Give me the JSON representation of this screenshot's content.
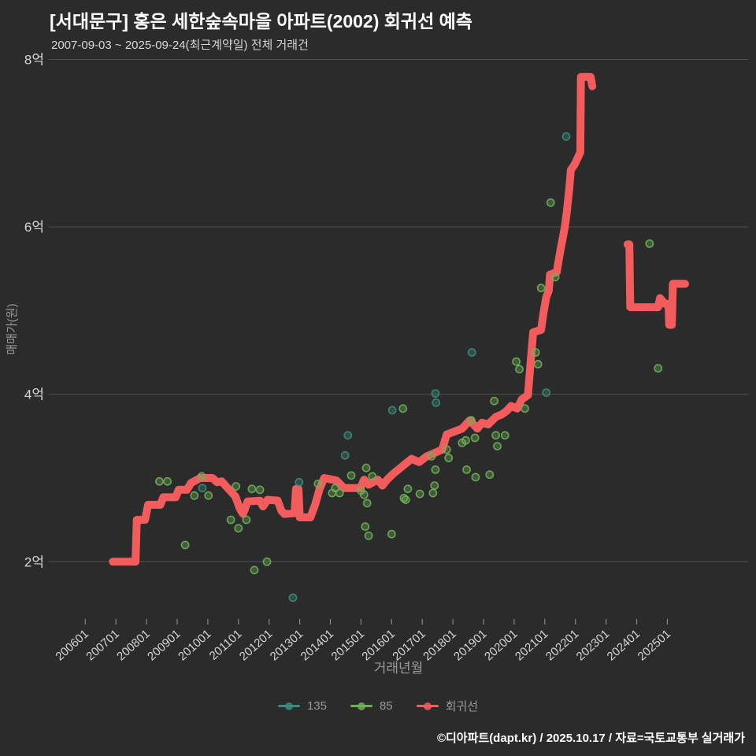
{
  "header": {
    "title": "[서대문구] 홍은 세한숲속마을 아파트(2002) 회귀선 예측",
    "subtitle": "2007-09-03 ~ 2025-09-24(최근계약일) 전체 거래건"
  },
  "footer": {
    "credit": "©디아파트(dapt.kr) / 2025.10.17 / 자료=국토교통부 실거래가"
  },
  "colors": {
    "background": "#2b2b2b",
    "grid": "#4f4f4f",
    "tick_mark": "#8a8a8a",
    "axis_tick_text": "#d5d5d5",
    "muted_text": "#9a9a9a",
    "title_text": "#ffffff",
    "red": "#f35c5c",
    "teal": "#3b8c7c",
    "green": "#6cb158"
  },
  "chart_data": {
    "type": "scatter",
    "title": "[서대문구] 홍은 세한숲속마을 아파트(2002) 회귀선 예측",
    "xlabel": "거래년월",
    "ylabel": "매매가(원)",
    "x_ticks": [
      "200601",
      "200701",
      "200801",
      "200901",
      "201001",
      "201101",
      "201201",
      "201301",
      "201401",
      "201501",
      "201601",
      "201701",
      "201801",
      "201901",
      "202001",
      "202101",
      "202201",
      "202301",
      "202401",
      "202501"
    ],
    "y_ticks": [
      {
        "label": "2억",
        "value": 2
      },
      {
        "label": "4억",
        "value": 4
      },
      {
        "label": "6억",
        "value": 6
      },
      {
        "label": "8억",
        "value": 8
      }
    ],
    "ylim_uk": [
      1.3,
      8.1
    ],
    "xlim_year": [
      2004.8,
      2027.6
    ],
    "grid": "horizontal-only",
    "legend_position": "bottom-center",
    "series": [
      {
        "name": "135",
        "kind": "scatter",
        "color_key": "teal",
        "points": [
          [
            2009.82,
            2.88
          ],
          [
            2012.78,
            1.57
          ],
          [
            2012.98,
            2.95
          ],
          [
            2014.48,
            3.27
          ],
          [
            2014.57,
            3.51
          ],
          [
            2016.02,
            3.81
          ],
          [
            2017.43,
            4.01
          ],
          [
            2017.45,
            3.9
          ],
          [
            2018.62,
            4.5
          ],
          [
            2021.05,
            4.02
          ],
          [
            2021.7,
            7.08
          ]
        ]
      },
      {
        "name": "85",
        "kind": "scatter",
        "color_key": "green",
        "points": [
          [
            2008.42,
            2.96
          ],
          [
            2008.68,
            2.96
          ],
          [
            2009.26,
            2.2
          ],
          [
            2009.56,
            2.79
          ],
          [
            2009.8,
            3.02
          ],
          [
            2010.02,
            2.79
          ],
          [
            2010.75,
            2.5
          ],
          [
            2010.92,
            2.9
          ],
          [
            2011.0,
            2.4
          ],
          [
            2011.26,
            2.5
          ],
          [
            2011.44,
            2.87
          ],
          [
            2011.52,
            1.9
          ],
          [
            2011.7,
            2.86
          ],
          [
            2011.93,
            2.0
          ],
          [
            2013.6,
            2.93
          ],
          [
            2014.06,
            2.82
          ],
          [
            2014.16,
            2.88
          ],
          [
            2014.3,
            2.82
          ],
          [
            2014.68,
            3.03
          ],
          [
            2015.0,
            2.85
          ],
          [
            2015.1,
            2.8
          ],
          [
            2015.14,
            2.42
          ],
          [
            2015.17,
            3.12
          ],
          [
            2015.2,
            2.7
          ],
          [
            2015.25,
            2.31
          ],
          [
            2015.37,
            3.02
          ],
          [
            2016.0,
            2.33
          ],
          [
            2016.37,
            3.83
          ],
          [
            2016.4,
            2.76
          ],
          [
            2016.46,
            2.74
          ],
          [
            2016.53,
            2.87
          ],
          [
            2016.92,
            2.81
          ],
          [
            2017.3,
            3.26
          ],
          [
            2017.35,
            2.82
          ],
          [
            2017.4,
            2.91
          ],
          [
            2017.43,
            3.1
          ],
          [
            2017.8,
            3.34
          ],
          [
            2017.86,
            3.24
          ],
          [
            2018.3,
            3.42
          ],
          [
            2018.42,
            3.45
          ],
          [
            2018.45,
            3.1
          ],
          [
            2018.6,
            3.69
          ],
          [
            2018.72,
            3.48
          ],
          [
            2018.74,
            3.01
          ],
          [
            2019.2,
            3.04
          ],
          [
            2019.35,
            3.92
          ],
          [
            2019.4,
            3.51
          ],
          [
            2019.45,
            3.38
          ],
          [
            2019.7,
            3.51
          ],
          [
            2020.07,
            4.39
          ],
          [
            2020.17,
            4.3
          ],
          [
            2020.35,
            3.83
          ],
          [
            2020.7,
            4.5
          ],
          [
            2020.78,
            4.36
          ],
          [
            2020.88,
            5.27
          ],
          [
            2021.19,
            6.29
          ],
          [
            2021.34,
            5.4
          ],
          [
            2024.42,
            5.8
          ],
          [
            2024.7,
            4.31
          ]
        ]
      },
      {
        "name": "회귀선",
        "kind": "line",
        "color_key": "red",
        "segments": [
          [
            [
              2006.9,
              2.0
            ],
            [
              2007.64,
              2.0
            ],
            [
              2007.68,
              2.5
            ],
            [
              2007.95,
              2.5
            ],
            [
              2008.05,
              2.68
            ],
            [
              2008.45,
              2.68
            ],
            [
              2008.55,
              2.77
            ],
            [
              2008.95,
              2.77
            ],
            [
              2009.05,
              2.86
            ],
            [
              2009.32,
              2.86
            ],
            [
              2009.45,
              2.94
            ],
            [
              2009.75,
              3.0
            ],
            [
              2010.15,
              3.0
            ],
            [
              2010.3,
              2.95
            ],
            [
              2010.45,
              2.96
            ],
            [
              2010.6,
              2.9
            ],
            [
              2010.75,
              2.84
            ],
            [
              2010.9,
              2.78
            ],
            [
              2011.05,
              2.63
            ],
            [
              2011.15,
              2.57
            ],
            [
              2011.3,
              2.72
            ],
            [
              2011.7,
              2.73
            ],
            [
              2011.8,
              2.66
            ],
            [
              2011.95,
              2.74
            ],
            [
              2012.28,
              2.73
            ],
            [
              2012.4,
              2.61
            ],
            [
              2012.5,
              2.57
            ],
            [
              2012.83,
              2.58
            ],
            [
              2012.88,
              2.87
            ],
            [
              2012.96,
              2.87
            ],
            [
              2013.0,
              2.53
            ],
            [
              2013.35,
              2.53
            ],
            [
              2013.5,
              2.68
            ],
            [
              2013.65,
              2.87
            ],
            [
              2013.8,
              3.0
            ],
            [
              2014.2,
              2.97
            ],
            [
              2014.45,
              2.88
            ],
            [
              2014.98,
              2.88
            ],
            [
              2015.1,
              2.98
            ],
            [
              2015.25,
              2.92
            ],
            [
              2015.55,
              2.98
            ],
            [
              2015.7,
              2.91
            ],
            [
              2015.85,
              2.98
            ],
            [
              2016.05,
              3.05
            ],
            [
              2016.65,
              3.23
            ],
            [
              2016.9,
              3.19
            ],
            [
              2017.15,
              3.26
            ],
            [
              2017.65,
              3.34
            ],
            [
              2017.8,
              3.52
            ],
            [
              2018.3,
              3.59
            ],
            [
              2018.55,
              3.69
            ],
            [
              2018.8,
              3.59
            ],
            [
              2018.95,
              3.66
            ],
            [
              2019.15,
              3.64
            ],
            [
              2019.4,
              3.73
            ],
            [
              2019.6,
              3.76
            ],
            [
              2019.75,
              3.8
            ],
            [
              2019.9,
              3.86
            ],
            [
              2020.1,
              3.83
            ],
            [
              2020.25,
              3.94
            ],
            [
              2020.45,
              3.99
            ],
            [
              2020.52,
              4.3
            ],
            [
              2020.62,
              4.74
            ],
            [
              2020.88,
              4.77
            ],
            [
              2020.95,
              4.96
            ],
            [
              2021.05,
              5.16
            ],
            [
              2021.13,
              5.24
            ],
            [
              2021.17,
              5.43
            ],
            [
              2021.39,
              5.46
            ],
            [
              2021.47,
              5.64
            ],
            [
              2021.55,
              5.8
            ],
            [
              2021.65,
              5.99
            ],
            [
              2021.72,
              6.18
            ],
            [
              2021.8,
              6.46
            ],
            [
              2021.85,
              6.68
            ],
            [
              2021.98,
              6.75
            ],
            [
              2022.16,
              6.89
            ],
            [
              2022.18,
              7.79
            ],
            [
              2022.5,
              7.79
            ],
            [
              2022.55,
              7.68
            ]
          ],
          [
            [
              2023.7,
              5.79
            ],
            [
              2023.76,
              5.79
            ],
            [
              2023.79,
              5.04
            ],
            [
              2024.7,
              5.04
            ],
            [
              2024.76,
              5.15
            ],
            [
              2024.92,
              5.08
            ],
            [
              2025.04,
              5.08
            ],
            [
              2025.06,
              4.83
            ],
            [
              2025.15,
              4.83
            ],
            [
              2025.18,
              5.32
            ],
            [
              2025.58,
              5.32
            ]
          ]
        ]
      }
    ]
  }
}
